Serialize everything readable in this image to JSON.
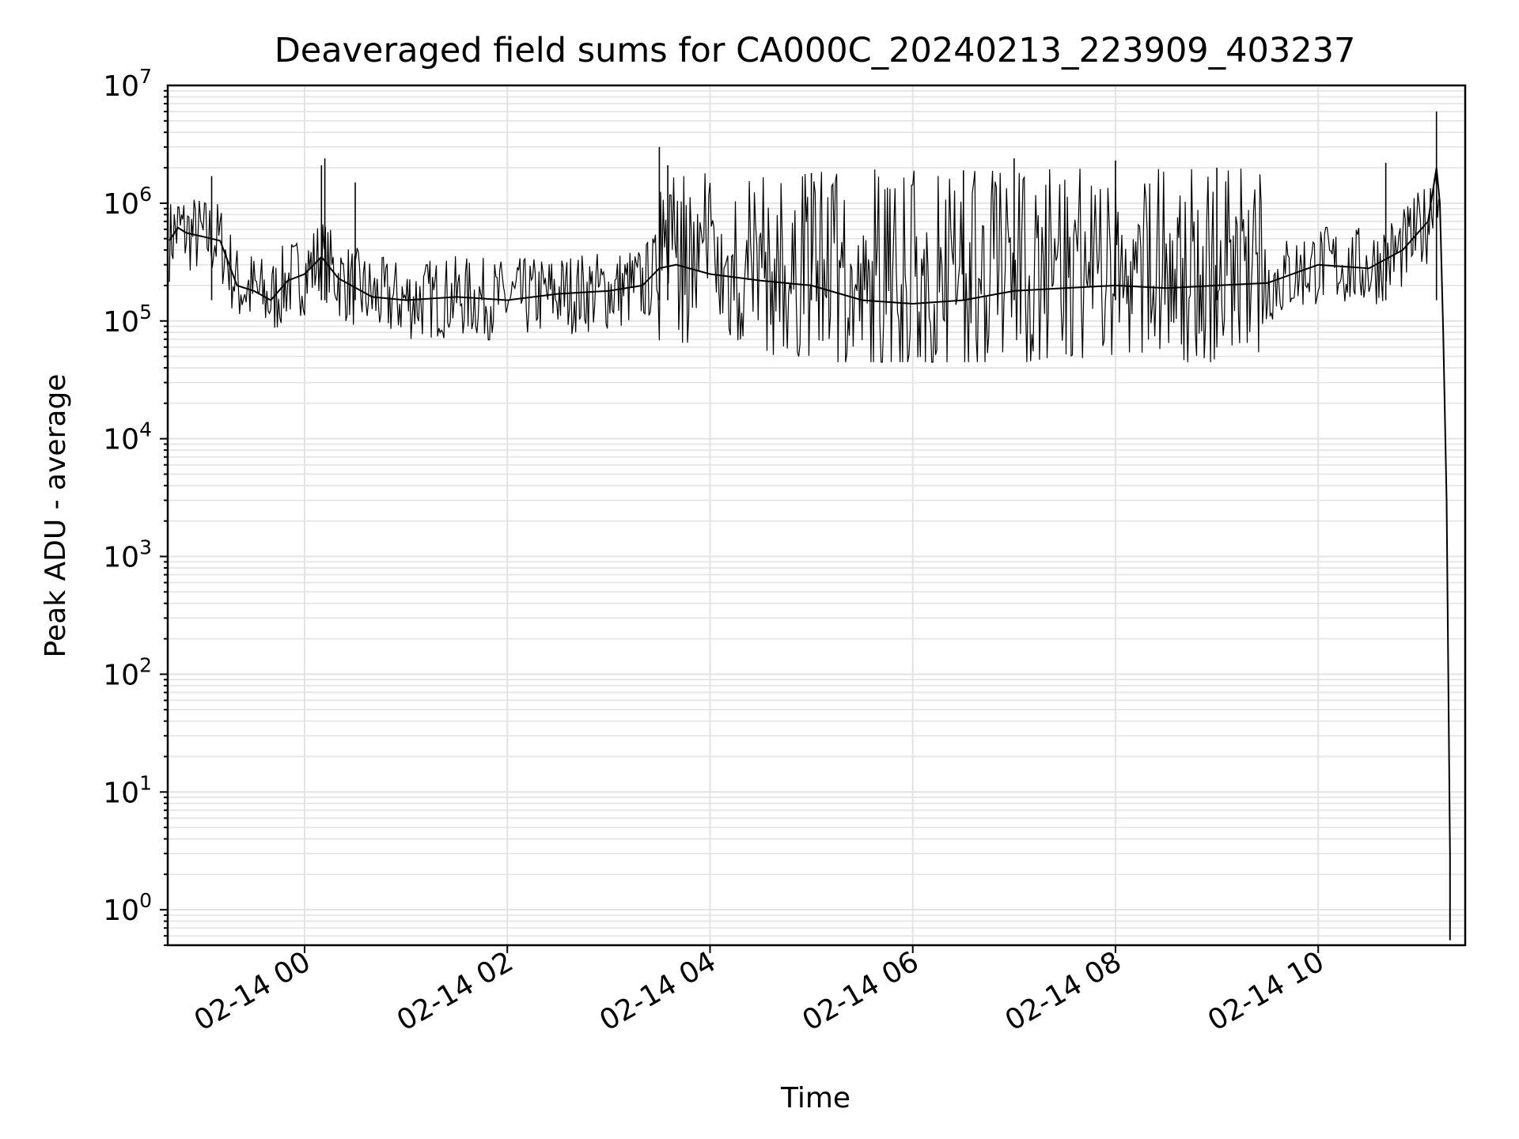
{
  "chart_data": {
    "type": "line",
    "title": "Deaveraged field sums for CA000C_20240213_223909_403237",
    "xlabel": "Time",
    "ylabel": "Peak ADU - average",
    "yscale": "log",
    "ylim": [
      0.5,
      10000000
    ],
    "xlim": [
      "2024-02-13 22:39",
      "2024-02-14 11:27"
    ],
    "x_ticks": [
      "02-14 00",
      "02-14 02",
      "02-14 04",
      "02-14 06",
      "02-14 08",
      "02-14 10"
    ],
    "y_ticks": [
      {
        "base": "10",
        "exp": "0"
      },
      {
        "base": "10",
        "exp": "1"
      },
      {
        "base": "10",
        "exp": "2"
      },
      {
        "base": "10",
        "exp": "3"
      },
      {
        "base": "10",
        "exp": "4"
      },
      {
        "base": "10",
        "exp": "5"
      },
      {
        "base": "10",
        "exp": "6"
      },
      {
        "base": "10",
        "exp": "7"
      }
    ],
    "grid": true,
    "colors": {
      "line": "#000000",
      "grid": "#e3e3e3"
    },
    "series": [
      {
        "points": [
          [
            "2024-02-13 22:40",
            480000
          ],
          [
            "2024-02-13 22:45",
            620000
          ],
          [
            "2024-02-13 22:50",
            560000
          ],
          [
            "2024-02-13 23:00",
            520000
          ],
          [
            "2024-02-13 23:10",
            480000
          ],
          [
            "2024-02-13 23:20",
            200000
          ],
          [
            "2024-02-13 23:30",
            180000
          ],
          [
            "2024-02-13 23:40",
            150000
          ],
          [
            "2024-02-13 23:50",
            220000
          ],
          [
            "2024-02-14 00:00",
            250000
          ],
          [
            "2024-02-14 00:10",
            350000
          ],
          [
            "2024-02-14 00:20",
            230000
          ],
          [
            "2024-02-14 00:40",
            160000
          ],
          [
            "2024-02-14 01:00",
            150000
          ],
          [
            "2024-02-14 01:30",
            160000
          ],
          [
            "2024-02-14 02:00",
            150000
          ],
          [
            "2024-02-14 02:30",
            170000
          ],
          [
            "2024-02-14 03:00",
            180000
          ],
          [
            "2024-02-14 03:20",
            200000
          ],
          [
            "2024-02-14 03:30",
            280000
          ],
          [
            "2024-02-14 03:40",
            300000
          ],
          [
            "2024-02-14 04:00",
            250000
          ],
          [
            "2024-02-14 04:30",
            220000
          ],
          [
            "2024-02-14 05:00",
            200000
          ],
          [
            "2024-02-14 05:30",
            150000
          ],
          [
            "2024-02-14 06:00",
            140000
          ],
          [
            "2024-02-14 06:30",
            150000
          ],
          [
            "2024-02-14 07:00",
            180000
          ],
          [
            "2024-02-14 07:30",
            190000
          ],
          [
            "2024-02-14 08:00",
            200000
          ],
          [
            "2024-02-14 08:30",
            190000
          ],
          [
            "2024-02-14 09:00",
            200000
          ],
          [
            "2024-02-14 09:30",
            210000
          ],
          [
            "2024-02-14 10:00",
            300000
          ],
          [
            "2024-02-14 10:30",
            280000
          ],
          [
            "2024-02-14 10:50",
            400000
          ],
          [
            "2024-02-14 11:05",
            700000
          ],
          [
            "2024-02-14 11:10",
            2000000
          ],
          [
            "2024-02-14 11:12",
            1000000
          ],
          [
            "2024-02-14 11:14",
            80000
          ],
          [
            "2024-02-14 11:15",
            15000
          ],
          [
            "2024-02-14 11:16",
            3000
          ],
          [
            "2024-02-14 11:17",
            100
          ],
          [
            "2024-02-14 11:18",
            3
          ],
          [
            "2024-02-14 11:18",
            0.55
          ]
        ],
        "spikes": [
          [
            "2024-02-13 23:05",
            1700000
          ],
          [
            "2024-02-14 00:10",
            2100000
          ],
          [
            "2024-02-14 00:12",
            2400000
          ],
          [
            "2024-02-14 00:30",
            1500000
          ],
          [
            "2024-02-14 03:30",
            3000000
          ],
          [
            "2024-02-14 03:35",
            2100000
          ],
          [
            "2024-02-14 05:00",
            1800000
          ],
          [
            "2024-02-14 06:30",
            1900000
          ],
          [
            "2024-02-14 07:00",
            2400000
          ],
          [
            "2024-02-14 08:00",
            2300000
          ],
          [
            "2024-02-14 09:00",
            2000000
          ],
          [
            "2024-02-14 10:40",
            2200000
          ],
          [
            "2024-02-14 11:10",
            6000000
          ]
        ]
      }
    ]
  }
}
